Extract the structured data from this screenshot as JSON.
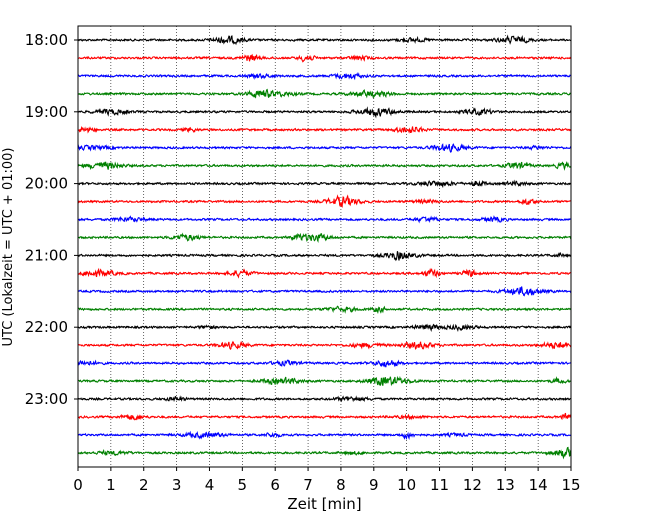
{
  "chart_data": {
    "type": "line",
    "title": "",
    "xlabel": "Zeit  [min]",
    "ylabel": "UTC (Lokalzeit = UTC + 01:00)",
    "xlim": [
      0,
      15
    ],
    "x_ticks": [
      "0",
      "1",
      "2",
      "3",
      "4",
      "5",
      "6",
      "7",
      "8",
      "9",
      "10",
      "11",
      "12",
      "13",
      "14",
      "15"
    ],
    "y_ticks": [
      "18:00",
      "19:00",
      "20:00",
      "21:00",
      "22:00",
      "23:00"
    ],
    "grid": "vertical dotted",
    "legend": "none",
    "row_minutes": 15,
    "start_time": "18:00",
    "rows": 24,
    "row_colors": [
      "#000000",
      "#ff0000",
      "#0000ff",
      "#008000"
    ]
  }
}
